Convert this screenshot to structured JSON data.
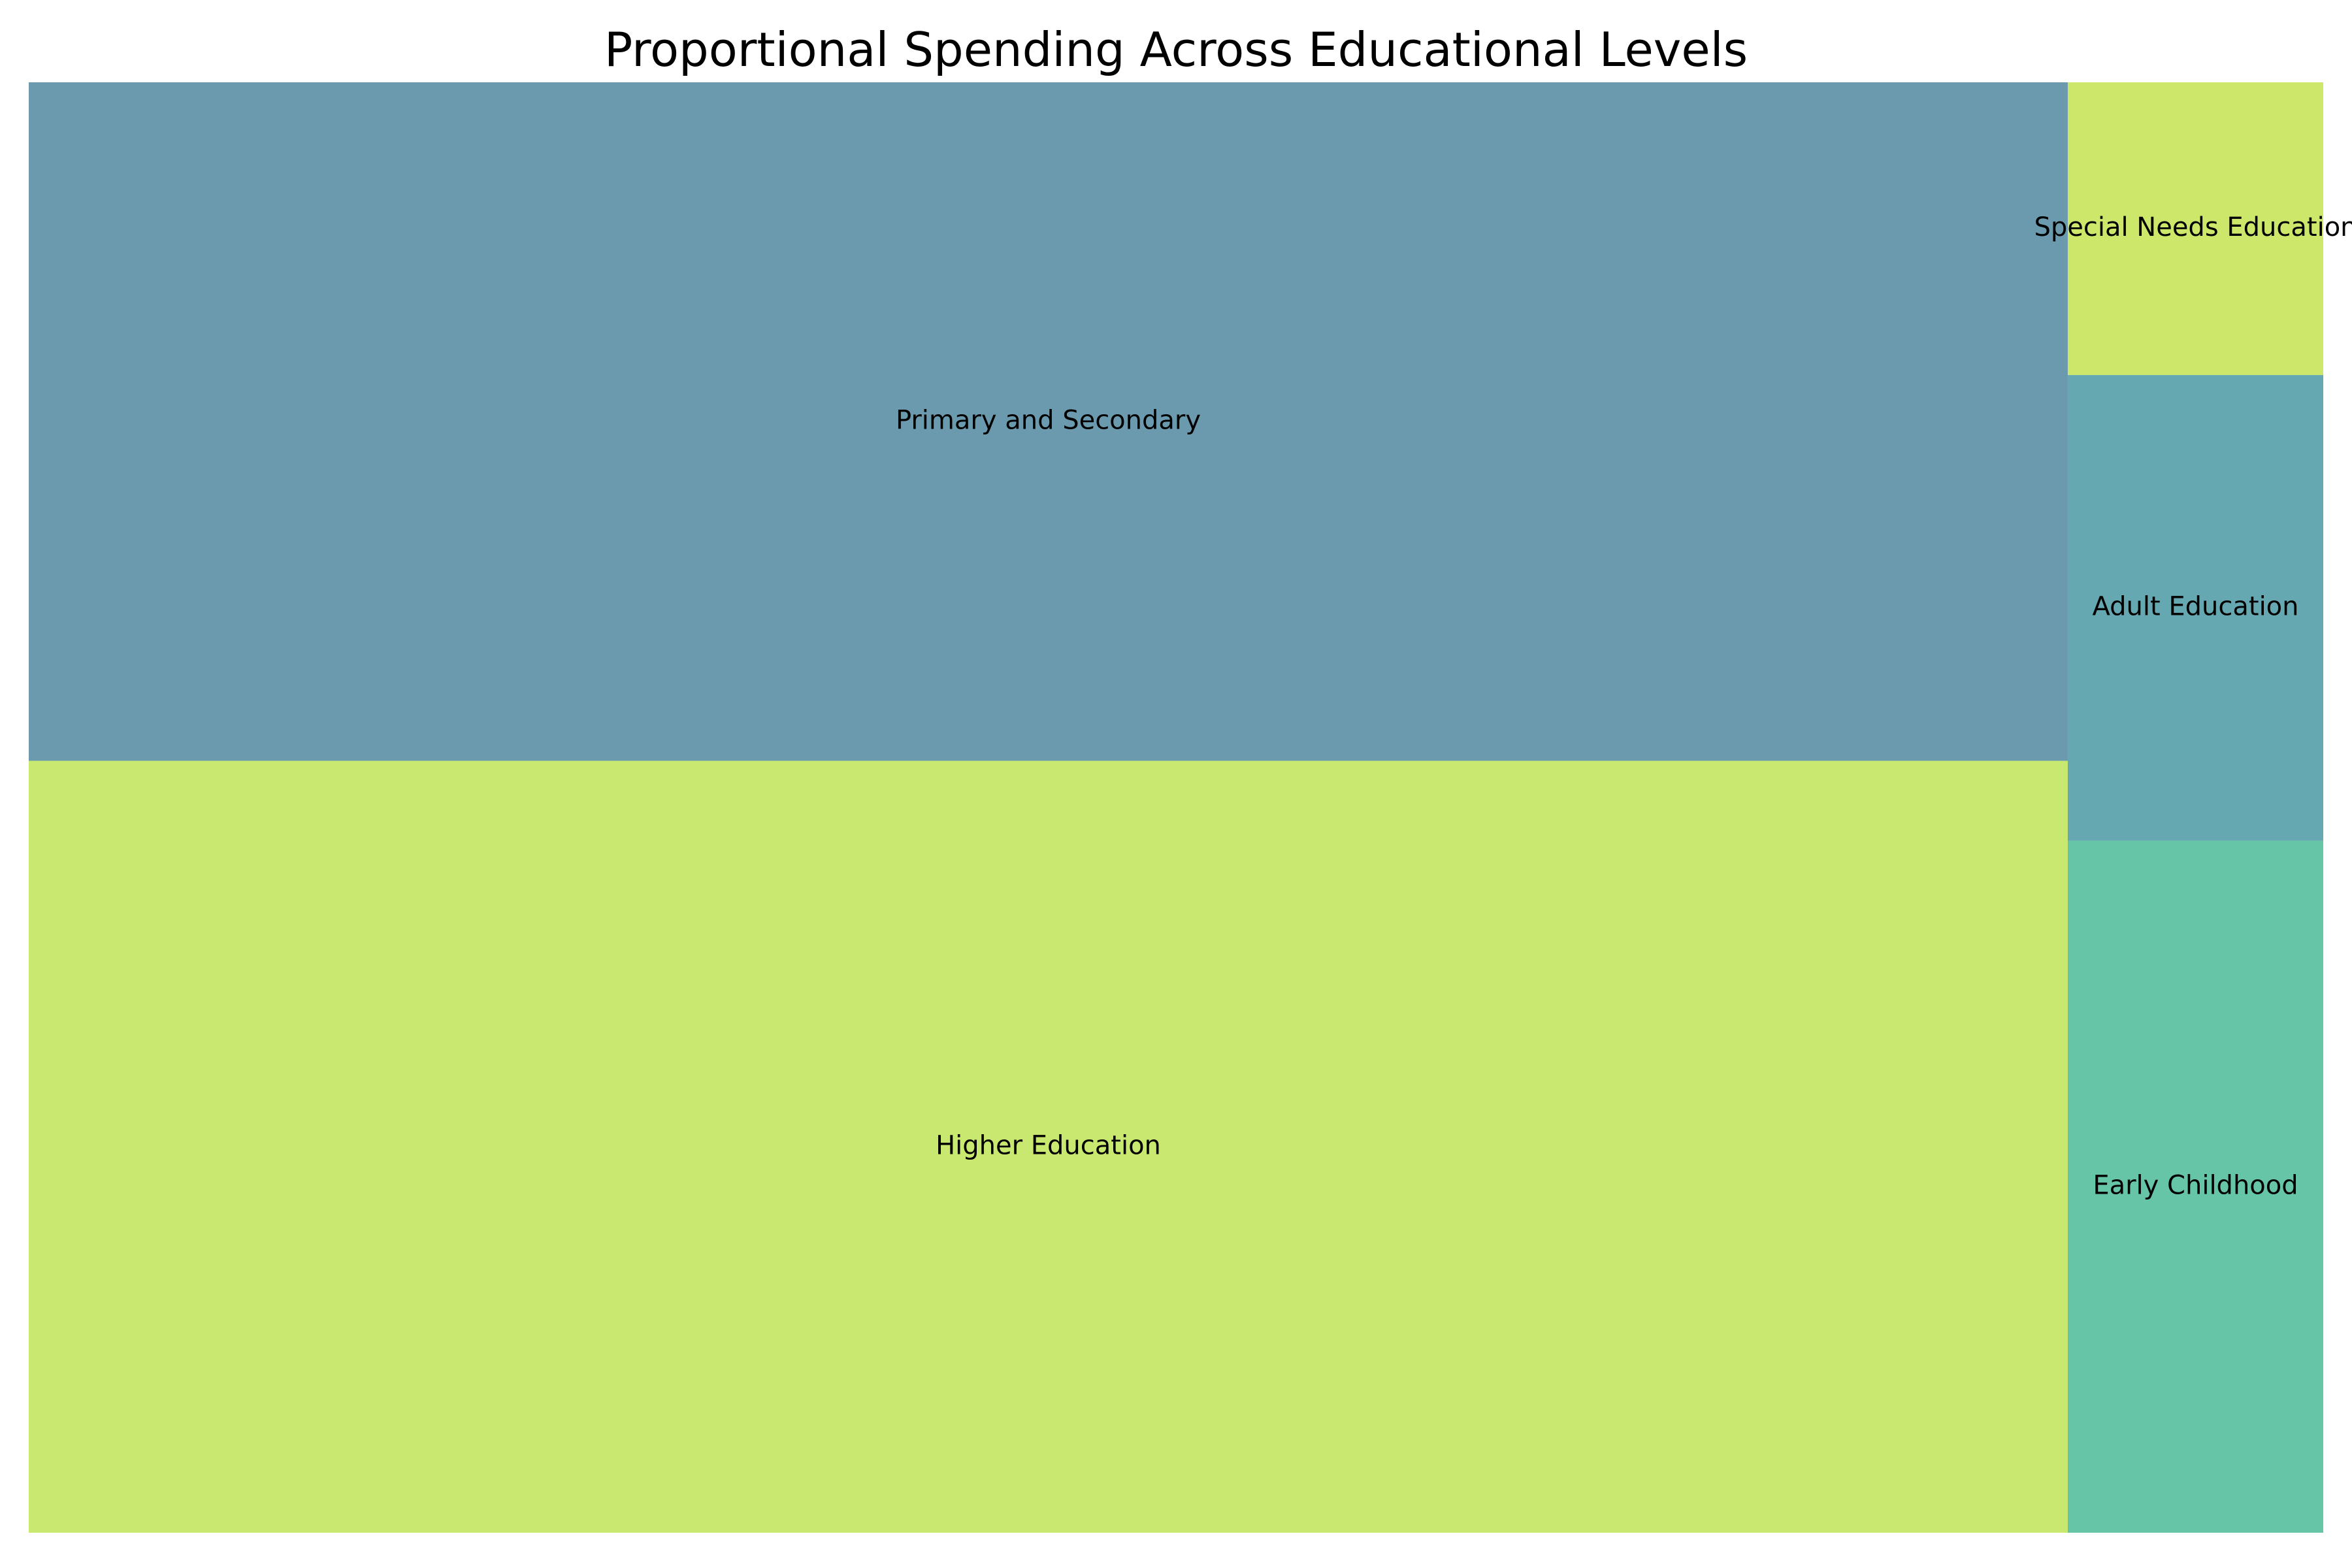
{
  "chart_data": {
    "type": "treemap",
    "title": "Proportional Spending Across Educational Levels",
    "categories": [
      "Primary and Secondary",
      "Higher Education",
      "Early Childhood",
      "Adult Education",
      "Special Needs Education"
    ],
    "series": [
      {
        "values": [
          40.7,
          46.3,
          5.2,
          3.5,
          2.2
        ]
      }
    ],
    "values_note_unit": "",
    "colors": {
      "Primary and Secondary": "#6b9aaf",
      "Higher Education": "#c8e86f",
      "Early Childhood": "#66c5a7",
      "Adult Education": "#65a8b1",
      "Special Needs Education": "#cde76b"
    }
  }
}
